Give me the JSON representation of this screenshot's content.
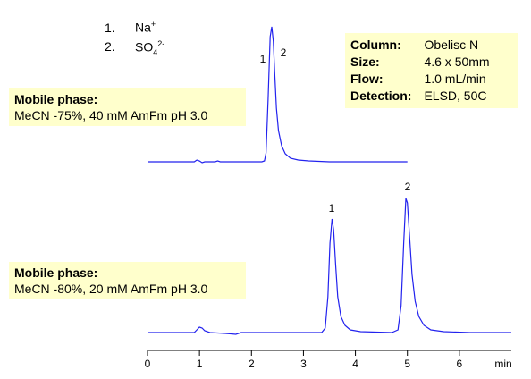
{
  "chart_data": [
    {
      "type": "line",
      "color": "#2222ee",
      "x": [
        0,
        0.9,
        0.95,
        1.0,
        1.05,
        1.1,
        1.3,
        1.35,
        1.4,
        2.2,
        2.25,
        2.28,
        2.32,
        2.36,
        2.39,
        2.42,
        2.45,
        2.48,
        2.52,
        2.58,
        2.65,
        2.75,
        2.9,
        3.1,
        3.5,
        5.0
      ],
      "values": [
        0,
        0,
        2,
        1,
        -1,
        0,
        0,
        1,
        0,
        0,
        1,
        10,
        70,
        140,
        151,
        135,
        95,
        60,
        35,
        18,
        9,
        4,
        2,
        1,
        0,
        0
      ],
      "xlim": [
        0,
        7
      ],
      "ylim": [
        -4,
        156
      ],
      "annotations": [
        "1",
        "2"
      ]
    },
    {
      "type": "line",
      "color": "#2222ee",
      "x": [
        0,
        0.9,
        0.95,
        1.0,
        1.05,
        1.1,
        1.2,
        1.5,
        1.7,
        1.8,
        2.5,
        3.35,
        3.42,
        3.47,
        3.51,
        3.55,
        3.58,
        3.62,
        3.66,
        3.72,
        3.8,
        3.9,
        4.1,
        4.7,
        4.82,
        4.88,
        4.93,
        4.97,
        5.0,
        5.04,
        5.09,
        5.15,
        5.22,
        5.32,
        5.45,
        5.7,
        6.2,
        7
      ],
      "values": [
        0,
        0,
        3,
        6,
        5,
        2,
        0,
        -1,
        -2,
        0,
        0,
        0,
        5,
        40,
        100,
        127,
        115,
        75,
        40,
        18,
        8,
        3,
        1,
        0,
        3,
        30,
        100,
        150,
        145,
        110,
        65,
        35,
        18,
        8,
        3,
        1,
        0,
        0
      ],
      "xlim": [
        0,
        7
      ],
      "ylim": [
        -3,
        157
      ],
      "xticks": [
        0,
        1,
        2,
        3,
        4,
        5,
        6
      ],
      "x_label": "min",
      "annotations": [
        "1",
        "2"
      ]
    }
  ],
  "legend": [
    {
      "number": "1.",
      "label": "Na",
      "sup": "+"
    },
    {
      "number": "2.",
      "label": "SO",
      "sub": "4",
      "sup": "2-"
    }
  ],
  "mobile_phases": [
    {
      "title": "Mobile phase:",
      "text": "MeCN -75%, 40 mM AmFm pH 3.0"
    },
    {
      "title": "Mobile phase:",
      "text": "MeCN -80%, 20 mM AmFm pH 3.0"
    }
  ],
  "info": [
    [
      "Column:",
      "Obelisc N"
    ],
    [
      "Size:",
      "4.6 x 50mm"
    ],
    [
      "Flow:",
      "1.0 mL/min"
    ],
    [
      "Detection:",
      "ELSD, 50C"
    ]
  ]
}
